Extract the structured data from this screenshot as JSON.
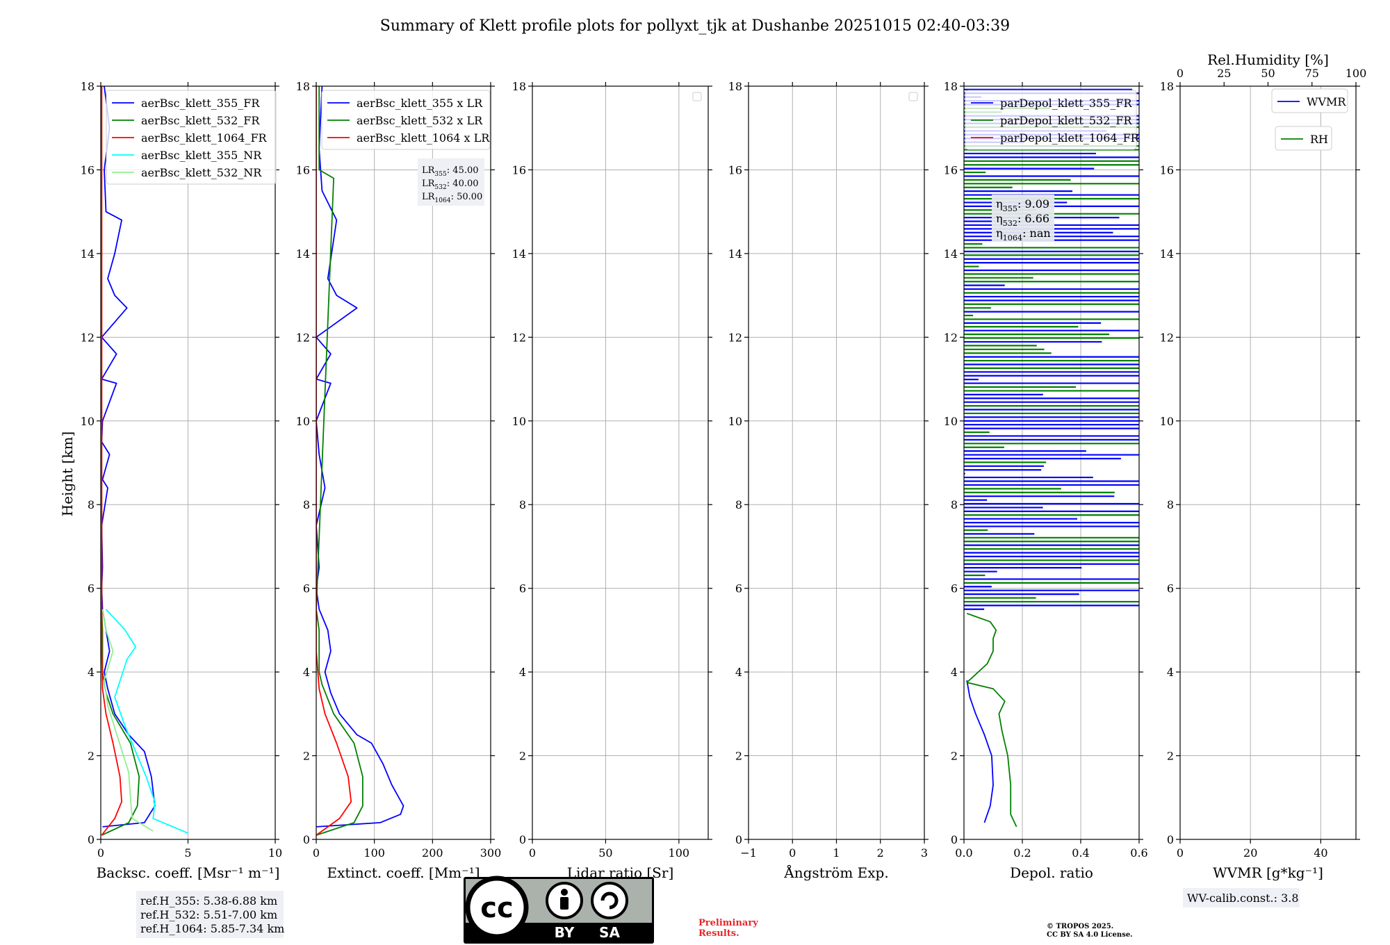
{
  "figure": {
    "title": "Summary of Klett profile plots for pollyxt_tjk at Dushanbe 20251015 02:40-03:39",
    "ylabel": "Height [km]",
    "y_ticks": [
      "0",
      "2",
      "4",
      "6",
      "8",
      "10",
      "12",
      "14",
      "16",
      "18"
    ]
  },
  "chart_data": [
    {
      "type": "line",
      "id": "backscatter",
      "xlabel": "Backsc. coeff. [Msr⁻¹ m⁻¹]",
      "xlim": [
        0,
        10
      ],
      "ylim": [
        0,
        18
      ],
      "x_ticks": [
        "0",
        "5",
        "10"
      ],
      "grid": true,
      "legend_position": "top-right",
      "series": [
        {
          "name": "aerBsc_klett_355_FR",
          "color": "#0000ff",
          "points": [
            [
              0.1,
              0.3
            ],
            [
              2.5,
              0.4
            ],
            [
              3.1,
              0.8
            ],
            [
              2.9,
              1.5
            ],
            [
              2.5,
              2.1
            ],
            [
              1.6,
              2.5
            ],
            [
              0.8,
              3.0
            ],
            [
              0.4,
              3.6
            ],
            [
              0.2,
              4.0
            ],
            [
              0.5,
              4.5
            ],
            [
              0.3,
              5.0
            ],
            [
              0.1,
              5.5
            ],
            [
              0.05,
              6.0
            ],
            [
              0.1,
              6.5
            ],
            [
              0.05,
              7.5
            ],
            [
              0.4,
              8.4
            ],
            [
              0.1,
              8.6
            ],
            [
              0.5,
              9.2
            ],
            [
              0.05,
              9.5
            ],
            [
              0.1,
              10.0
            ],
            [
              0.9,
              10.9
            ],
            [
              0.05,
              11.0
            ],
            [
              0.9,
              11.6
            ],
            [
              0.05,
              12.0
            ],
            [
              1.5,
              12.7
            ],
            [
              0.8,
              13.0
            ],
            [
              0.4,
              13.4
            ],
            [
              0.8,
              14.0
            ],
            [
              1.2,
              14.8
            ],
            [
              0.3,
              15.0
            ],
            [
              0.2,
              16.0
            ],
            [
              0.5,
              17.0
            ],
            [
              0.2,
              18.0
            ]
          ]
        },
        {
          "name": "aerBsc_klett_532_FR",
          "color": "#008000",
          "points": [
            [
              0.05,
              0.1
            ],
            [
              1.6,
              0.4
            ],
            [
              2.1,
              0.8
            ],
            [
              2.2,
              1.5
            ],
            [
              1.7,
              2.3
            ],
            [
              0.7,
              3.0
            ],
            [
              0.3,
              3.5
            ],
            [
              0.1,
              4.0
            ],
            [
              0.1,
              5.0
            ],
            [
              0.05,
              5.5
            ],
            [
              0.05,
              18.0
            ]
          ]
        },
        {
          "name": "aerBsc_klett_1064_FR",
          "color": "#ff0000",
          "points": [
            [
              0.05,
              0.1
            ],
            [
              0.8,
              0.5
            ],
            [
              1.2,
              0.9
            ],
            [
              1.1,
              1.5
            ],
            [
              0.7,
              2.3
            ],
            [
              0.3,
              3.0
            ],
            [
              0.1,
              3.6
            ],
            [
              0.05,
              4.5
            ],
            [
              0.05,
              18.0
            ]
          ]
        },
        {
          "name": "aerBsc_klett_355_NR",
          "color": "#00ffff",
          "points": [
            [
              5.0,
              0.15
            ],
            [
              3.0,
              0.5
            ],
            [
              3.1,
              0.9
            ],
            [
              2.6,
              1.5
            ],
            [
              2.1,
              2.0
            ],
            [
              1.4,
              2.7
            ],
            [
              0.8,
              3.4
            ],
            [
              1.5,
              4.3
            ],
            [
              2.0,
              4.6
            ],
            [
              1.4,
              5.0
            ],
            [
              0.3,
              5.5
            ]
          ]
        },
        {
          "name": "aerBsc_klett_532_NR",
          "color": "#90ee90",
          "points": [
            [
              3.0,
              0.2
            ],
            [
              1.8,
              0.5
            ],
            [
              1.7,
              1.0
            ],
            [
              1.6,
              1.6
            ],
            [
              1.0,
              2.4
            ],
            [
              0.4,
              3.2
            ],
            [
              0.2,
              3.8
            ],
            [
              0.7,
              4.5
            ],
            [
              0.3,
              5.0
            ],
            [
              0.1,
              5.5
            ]
          ]
        }
      ]
    },
    {
      "type": "line",
      "id": "extinction",
      "xlabel": "Extinct. coeff. [Mm⁻¹]",
      "xlim": [
        0,
        300
      ],
      "ylim": [
        0,
        18
      ],
      "x_ticks": [
        "0",
        "100",
        "200",
        "300"
      ],
      "grid": true,
      "legend_position": "top-right",
      "series": [
        {
          "name": "aerBsc_klett_355 x LR",
          "color": "#0000ff",
          "points": [
            [
              0,
              0.3
            ],
            [
              110,
              0.4
            ],
            [
              145,
              0.6
            ],
            [
              150,
              0.8
            ],
            [
              130,
              1.3
            ],
            [
              115,
              1.8
            ],
            [
              95,
              2.3
            ],
            [
              70,
              2.5
            ],
            [
              40,
              3.0
            ],
            [
              25,
              3.5
            ],
            [
              15,
              4.0
            ],
            [
              25,
              4.5
            ],
            [
              20,
              5.0
            ],
            [
              5,
              5.5
            ],
            [
              0,
              6.0
            ],
            [
              5,
              6.5
            ],
            [
              0,
              7.5
            ],
            [
              15,
              8.4
            ],
            [
              5,
              9.2
            ],
            [
              0,
              10.0
            ],
            [
              25,
              10.9
            ],
            [
              0,
              11.0
            ],
            [
              25,
              11.6
            ],
            [
              0,
              12.0
            ],
            [
              70,
              12.7
            ],
            [
              35,
              13.0
            ],
            [
              20,
              13.4
            ],
            [
              35,
              14.8
            ],
            [
              10,
              15.5
            ],
            [
              5,
              16.5
            ],
            [
              10,
              18.0
            ]
          ]
        },
        {
          "name": "aerBsc_klett_532 x LR",
          "color": "#008000",
          "points": [
            [
              0,
              0.1
            ],
            [
              65,
              0.4
            ],
            [
              80,
              0.8
            ],
            [
              80,
              1.5
            ],
            [
              65,
              2.3
            ],
            [
              30,
              3.0
            ],
            [
              10,
              3.7
            ],
            [
              5,
              4.0
            ],
            [
              5,
              5.0
            ],
            [
              0,
              5.5
            ],
            [
              30,
              15.8
            ],
            [
              5,
              16.0
            ],
            [
              5,
              18.0
            ]
          ]
        },
        {
          "name": "aerBsc_klett_1064 x LR",
          "color": "#ff0000",
          "points": [
            [
              0,
              0.1
            ],
            [
              40,
              0.5
            ],
            [
              60,
              0.9
            ],
            [
              55,
              1.5
            ],
            [
              35,
              2.3
            ],
            [
              15,
              3.0
            ],
            [
              5,
              3.6
            ],
            [
              0,
              4.5
            ],
            [
              0,
              18.0
            ]
          ]
        }
      ]
    },
    {
      "type": "line",
      "id": "lidar_ratio",
      "xlabel": "Lidar ratio [Sr]",
      "xlim": [
        0,
        120
      ],
      "ylim": [
        0,
        18
      ],
      "x_ticks": [
        "0",
        "50",
        "100"
      ],
      "grid": true,
      "legend_position": "top-right",
      "series": []
    },
    {
      "type": "line",
      "id": "angstrom",
      "xlabel": "Ångström Exp.",
      "xlim": [
        -1,
        3
      ],
      "ylim": [
        0,
        18
      ],
      "x_ticks": [
        "−1",
        "0",
        "1",
        "2",
        "3"
      ],
      "grid": true,
      "legend_position": "top-right",
      "series": []
    },
    {
      "type": "line",
      "id": "depol",
      "xlabel": "Depol. ratio",
      "xlim": [
        0,
        0.6
      ],
      "ylim": [
        0,
        18
      ],
      "x_ticks": [
        "0.0",
        "0.2",
        "0.4",
        "0.6"
      ],
      "grid": true,
      "legend_position": "top-left",
      "series": [
        {
          "name": "parDepol_klett_355_FR",
          "color": "#0000ff",
          "points": [
            [
              0.07,
              0.4
            ],
            [
              0.09,
              0.8
            ],
            [
              0.1,
              1.3
            ],
            [
              0.095,
              2.0
            ],
            [
              0.07,
              2.5
            ],
            [
              0.04,
              3.0
            ],
            [
              0.02,
              3.4
            ],
            [
              0.01,
              3.8
            ]
          ]
        },
        {
          "name": "parDepol_klett_532_FR",
          "color": "#008000",
          "points": [
            [
              0.18,
              0.3
            ],
            [
              0.16,
              0.6
            ],
            [
              0.16,
              1.3
            ],
            [
              0.15,
              2.0
            ],
            [
              0.13,
              2.6
            ],
            [
              0.12,
              3.0
            ],
            [
              0.14,
              3.3
            ],
            [
              0.1,
              3.6
            ],
            [
              0.01,
              3.75
            ],
            [
              0.08,
              4.2
            ],
            [
              0.1,
              4.5
            ],
            [
              0.1,
              4.8
            ],
            [
              0.11,
              5.0
            ],
            [
              0.09,
              5.2
            ],
            [
              0.01,
              5.4
            ]
          ]
        },
        {
          "name": "parDepol_klett_1064_FR",
          "color": "#ff0000",
          "points": []
        }
      ]
    },
    {
      "type": "line",
      "id": "wvmr",
      "xlabel": "WVMR [g*kg⁻¹]",
      "xlim": [
        0,
        50
      ],
      "ylim": [
        0,
        18
      ],
      "x_ticks": [
        "0",
        "20",
        "40"
      ],
      "top_xlabel": "Rel.Humidity [%]",
      "top_xlim": [
        0,
        100
      ],
      "top_x_ticks": [
        "0",
        "25",
        "50",
        "75",
        "100"
      ],
      "grid": true,
      "legend_position": "top-right",
      "series": [
        {
          "name": "WVMR",
          "color": "#0000ff",
          "points": []
        },
        {
          "name": "RH",
          "color": "#008000",
          "points": []
        }
      ]
    }
  ],
  "annotations": {
    "lr_box": [
      "LR355: 45.00",
      "LR532: 40.00",
      "LR1064: 50.00"
    ],
    "eta_box": [
      "η355: 9.09",
      "η532: 6.66",
      "η1064: nan"
    ],
    "refh_box": [
      "ref.H_355: 5.38-6.88 km",
      "ref.H_532: 5.51-7.00 km",
      "ref.H_1064: 5.85-7.34 km"
    ],
    "wv_calib": "WV-calib.const.: 3.8",
    "preliminary": [
      "Preliminary",
      "Results."
    ],
    "copyright": [
      "© TROPOS 2025.",
      "CC BY SA 4.0 License."
    ],
    "cc_badge": {
      "cc": "cc",
      "by": "BY",
      "sa": "SA"
    }
  },
  "colors": {
    "blue": "#0000ff",
    "green": "#008000",
    "red": "#ff0000",
    "cyan": "#00ffff",
    "lightgreen": "#90ee90",
    "grid": "#b0b0b0",
    "prelim_red": "#e8262e",
    "box_bg": "#eef0f5"
  }
}
